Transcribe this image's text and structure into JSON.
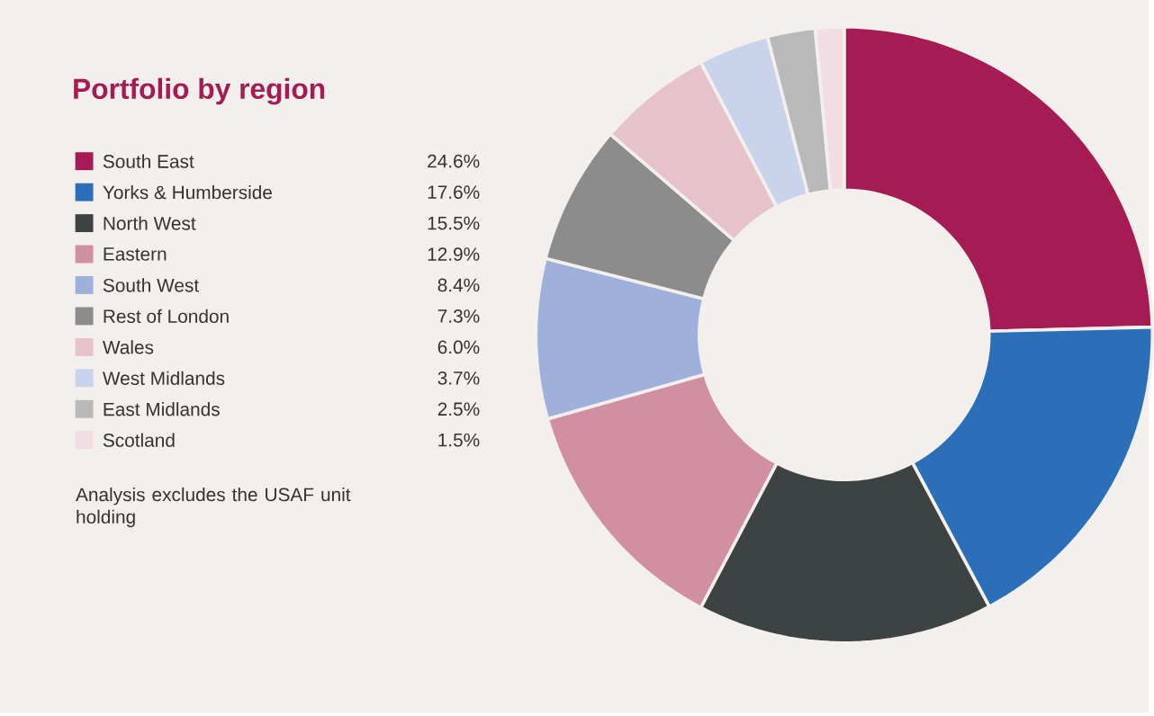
{
  "chart_data": {
    "type": "donut",
    "title": "Portfolio by region",
    "categories": [
      "South East",
      "Yorks & Humberside",
      "North West",
      "Eastern",
      "South West",
      "Rest of London",
      "Wales",
      "West Midlands",
      "East Midlands",
      "Scotland"
    ],
    "values": [
      24.6,
      17.6,
      15.5,
      12.9,
      8.4,
      7.3,
      6.0,
      3.7,
      2.5,
      1.5
    ],
    "value_labels": [
      "24.6%",
      "17.6%",
      "15.5%",
      "12.9%",
      "8.4%",
      "7.3%",
      "6.0%",
      "3.7%",
      "2.5%",
      "1.5%"
    ],
    "colors": [
      "#a51c55",
      "#2a6fb8",
      "#3d4343",
      "#d08fa3",
      "#9fb1db",
      "#8c8c8c",
      "#e6c3cb",
      "#c9d3ec",
      "#b9b9b9",
      "#f3dde4"
    ],
    "legend": "left",
    "annotations": [
      "Analysis excludes the USAF unit holding"
    ]
  }
}
